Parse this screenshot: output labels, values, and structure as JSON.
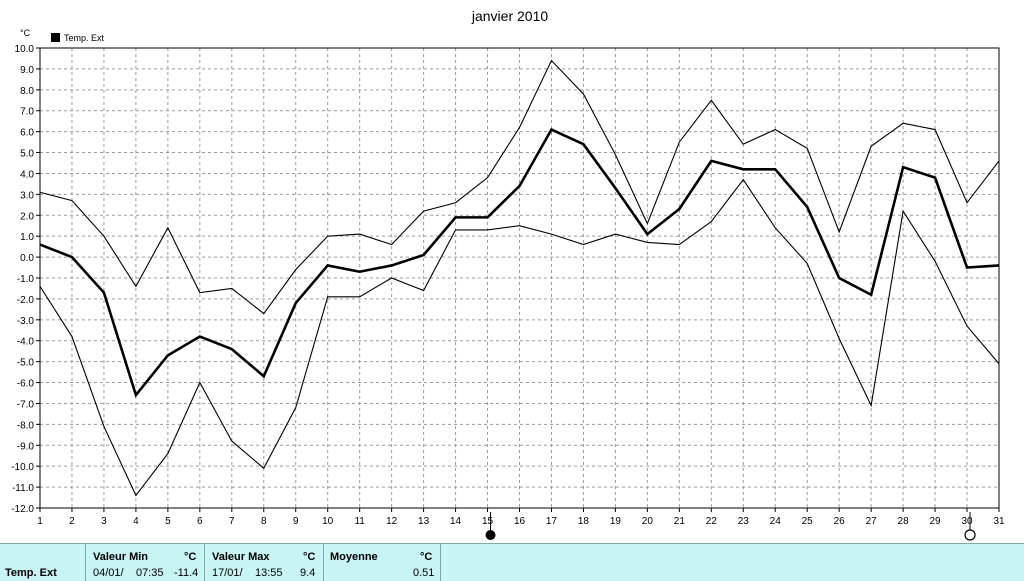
{
  "chart_data": {
    "type": "line",
    "title": "janvier 2010",
    "ylabel": "°C",
    "xlabel": "",
    "legend": {
      "entries": [
        "Temp. Ext"
      ],
      "placement": "top-left"
    },
    "ylim": [
      -12,
      10
    ],
    "xlim": [
      1,
      31
    ],
    "grid": true,
    "yticks": [
      "10.0",
      "9.0",
      "8.0",
      "7.0",
      "6.0",
      "5.0",
      "4.0",
      "3.0",
      "2.0",
      "1.0",
      "0.0",
      "-1.0",
      "-2.0",
      "-3.0",
      "-4.0",
      "-5.0",
      "-6.0",
      "-7.0",
      "-8.0",
      "-9.0",
      "-10.0",
      "-11.0",
      "-12.0"
    ],
    "x": [
      1,
      2,
      3,
      4,
      5,
      6,
      7,
      8,
      9,
      10,
      11,
      12,
      13,
      14,
      15,
      16,
      17,
      18,
      19,
      20,
      21,
      22,
      23,
      24,
      25,
      26,
      27,
      28,
      29,
      30,
      31
    ],
    "series": [
      {
        "name": "Temp. Ext",
        "role": "max",
        "values": [
          3.1,
          2.7,
          1.0,
          -1.4,
          1.4,
          -1.7,
          -1.5,
          -2.7,
          -0.6,
          1.0,
          1.1,
          0.6,
          2.2,
          2.6,
          3.8,
          6.2,
          9.4,
          7.8,
          4.9,
          1.6,
          5.5,
          7.5,
          5.4,
          6.1,
          5.2,
          1.2,
          5.3,
          6.4,
          6.1,
          2.6,
          4.6
        ]
      },
      {
        "name": "Temp. Ext",
        "role": "avg",
        "values": [
          0.6,
          0.0,
          -1.7,
          -6.6,
          -4.7,
          -3.8,
          -4.4,
          -5.7,
          -2.2,
          -0.4,
          -0.7,
          -0.4,
          0.1,
          1.9,
          1.9,
          3.4,
          6.1,
          5.4,
          3.3,
          1.1,
          2.3,
          4.6,
          4.2,
          4.2,
          2.4,
          -1.0,
          -1.8,
          4.3,
          3.8,
          -0.5,
          -0.4
        ]
      },
      {
        "name": "Temp. Ext",
        "role": "min",
        "values": [
          -1.4,
          -3.8,
          -8.1,
          -11.4,
          -9.4,
          -6.0,
          -8.8,
          -10.1,
          -7.2,
          -1.9,
          -1.9,
          -1.0,
          -1.6,
          1.3,
          1.3,
          1.5,
          1.1,
          0.6,
          1.1,
          0.7,
          0.6,
          1.7,
          3.7,
          1.4,
          -0.3,
          -3.9,
          -7.1,
          2.2,
          -0.2,
          -3.3,
          -5.1
        ]
      }
    ],
    "markers": [
      {
        "x": 15,
        "symbol": "moon-full-filled"
      },
      {
        "x": 30,
        "symbol": "moon-new-empty"
      }
    ]
  },
  "stats": {
    "series_label": "Temp. Ext",
    "min_header": "Valeur Min",
    "max_header": "Valeur Max",
    "avg_header": "Moyenne",
    "unit": "°C",
    "min_date": "04/01/",
    "min_time": "07:35",
    "min_value": "-11.4",
    "max_date": "17/01/",
    "max_time": "13:55",
    "max_value": "9.4",
    "avg_value": "0.51"
  }
}
